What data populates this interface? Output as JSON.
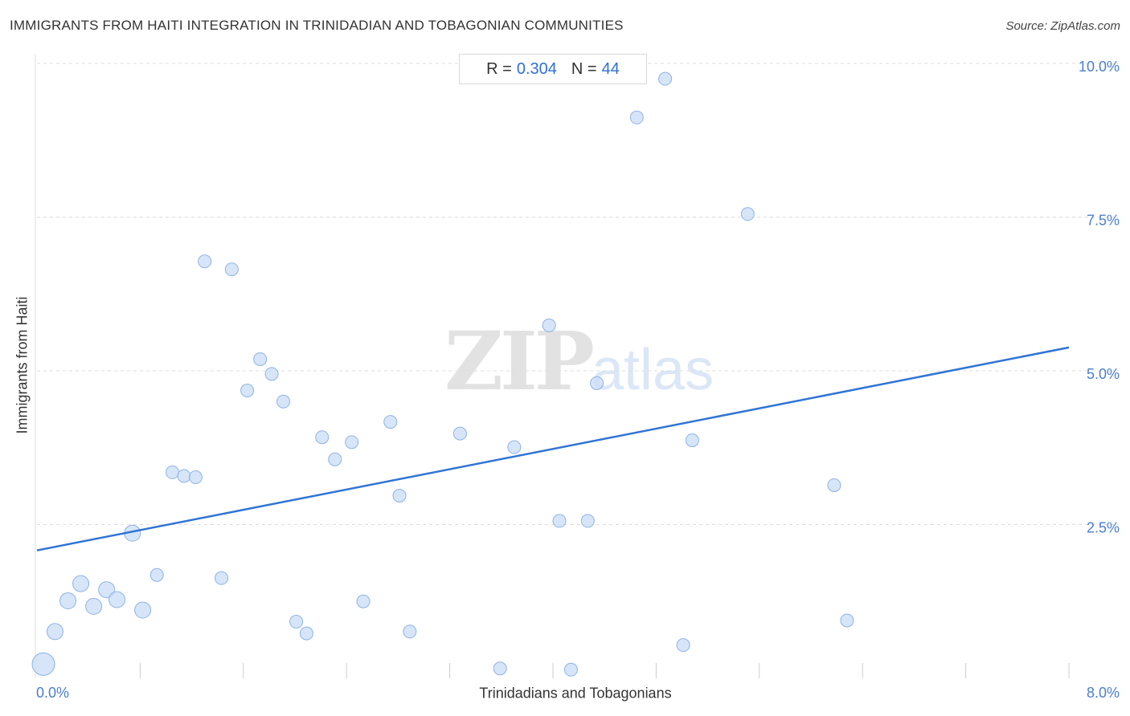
{
  "header": {
    "title": "IMMIGRANTS FROM HAITI INTEGRATION IN TRINIDADIAN AND TOBAGONIAN COMMUNITIES",
    "source": "Source: ZipAtlas.com"
  },
  "stats": {
    "r_label": "R =",
    "r_value": "0.304",
    "n_label": "N =",
    "n_value": "44"
  },
  "watermark": {
    "zip": "ZIP",
    "atlas": "atlas"
  },
  "colors": {
    "point_fill": "#c9dcf5",
    "point_stroke": "#8db3e6",
    "trend": "#2f74d6",
    "tick_label": "#4a7fd0",
    "grid": "#dddddd"
  },
  "chart_data": {
    "type": "scatter",
    "title": "IMMIGRANTS FROM HAITI INTEGRATION IN TRINIDADIAN AND TOBAGONIAN COMMUNITIES",
    "xlabel": "Trinidadians and Tobagonians",
    "ylabel": "Immigrants from Haiti",
    "xlim": [
      0,
      8
    ],
    "ylim": [
      0,
      10
    ],
    "x_tick_labels": [
      "0.0%",
      "8.0%"
    ],
    "y_ticks": [
      2.5,
      5.0,
      7.5,
      10.0
    ],
    "y_tick_labels": [
      "2.5%",
      "5.0%",
      "7.5%",
      "10.0%"
    ],
    "grid": "horizontal dashed",
    "trend_line": {
      "x": [
        0,
        8
      ],
      "y": [
        2.08,
        5.38
      ]
    },
    "points": [
      {
        "x": 0.05,
        "y": 0.23,
        "size": "large"
      },
      {
        "x": 0.14,
        "y": 0.76,
        "size": "medium"
      },
      {
        "x": 0.24,
        "y": 1.26,
        "size": "medium"
      },
      {
        "x": 0.34,
        "y": 1.54,
        "size": "medium"
      },
      {
        "x": 0.44,
        "y": 1.17,
        "size": "medium"
      },
      {
        "x": 0.54,
        "y": 1.44,
        "size": "medium"
      },
      {
        "x": 0.62,
        "y": 1.28,
        "size": "medium"
      },
      {
        "x": 0.74,
        "y": 2.36,
        "size": "medium"
      },
      {
        "x": 0.82,
        "y": 1.11,
        "size": "medium"
      },
      {
        "x": 0.93,
        "y": 1.68,
        "size": "small"
      },
      {
        "x": 1.05,
        "y": 3.35,
        "size": "small"
      },
      {
        "x": 1.14,
        "y": 3.29,
        "size": "small"
      },
      {
        "x": 1.23,
        "y": 3.27,
        "size": "small"
      },
      {
        "x": 1.3,
        "y": 6.78,
        "size": "small"
      },
      {
        "x": 1.43,
        "y": 1.63,
        "size": "small"
      },
      {
        "x": 1.51,
        "y": 6.65,
        "size": "small"
      },
      {
        "x": 1.63,
        "y": 4.68,
        "size": "small"
      },
      {
        "x": 1.73,
        "y": 5.19,
        "size": "small"
      },
      {
        "x": 1.82,
        "y": 4.95,
        "size": "small"
      },
      {
        "x": 1.91,
        "y": 4.5,
        "size": "small"
      },
      {
        "x": 2.01,
        "y": 0.92,
        "size": "small"
      },
      {
        "x": 2.09,
        "y": 0.73,
        "size": "small"
      },
      {
        "x": 2.21,
        "y": 3.92,
        "size": "small"
      },
      {
        "x": 2.31,
        "y": 3.56,
        "size": "small"
      },
      {
        "x": 2.44,
        "y": 3.84,
        "size": "small"
      },
      {
        "x": 2.53,
        "y": 1.25,
        "size": "small"
      },
      {
        "x": 2.74,
        "y": 4.17,
        "size": "small"
      },
      {
        "x": 2.81,
        "y": 2.97,
        "size": "small"
      },
      {
        "x": 2.89,
        "y": 0.76,
        "size": "small"
      },
      {
        "x": 3.28,
        "y": 3.98,
        "size": "small"
      },
      {
        "x": 3.59,
        "y": 0.16,
        "size": "small"
      },
      {
        "x": 3.7,
        "y": 3.76,
        "size": "small"
      },
      {
        "x": 3.97,
        "y": 5.74,
        "size": "small"
      },
      {
        "x": 4.05,
        "y": 2.56,
        "size": "small"
      },
      {
        "x": 4.14,
        "y": 0.14,
        "size": "small"
      },
      {
        "x": 4.27,
        "y": 2.56,
        "size": "small"
      },
      {
        "x": 4.34,
        "y": 4.8,
        "size": "small"
      },
      {
        "x": 4.65,
        "y": 9.12,
        "size": "small"
      },
      {
        "x": 4.87,
        "y": 9.75,
        "size": "small"
      },
      {
        "x": 5.01,
        "y": 0.54,
        "size": "small"
      },
      {
        "x": 5.08,
        "y": 3.87,
        "size": "small"
      },
      {
        "x": 5.51,
        "y": 7.55,
        "size": "small"
      },
      {
        "x": 6.18,
        "y": 3.14,
        "size": "small"
      },
      {
        "x": 6.28,
        "y": 0.94,
        "size": "small"
      }
    ]
  }
}
